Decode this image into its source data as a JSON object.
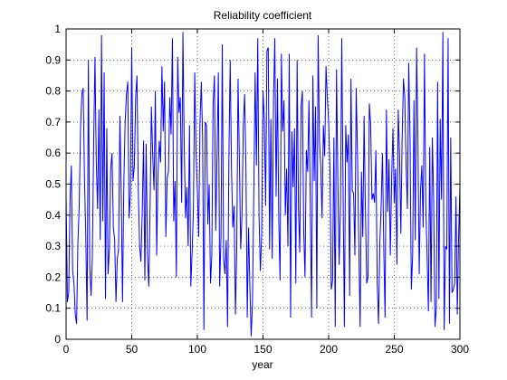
{
  "chart_data": {
    "type": "line",
    "title": "Reliability coefficient",
    "xlabel": "year",
    "ylabel": "",
    "xlim": [
      0,
      300
    ],
    "ylim": [
      0,
      1
    ],
    "xticks": [
      "0",
      "50",
      "100",
      "150",
      "200",
      "250",
      "300"
    ],
    "yticks": [
      "0",
      "0.1",
      "0.2",
      "0.3",
      "0.4",
      "0.5",
      "0.6",
      "0.7",
      "0.8",
      "0.9",
      "1"
    ],
    "grid": true,
    "line_color": "#0000ff",
    "series": [
      {
        "name": "",
        "x_start": 0,
        "x_step": 1,
        "values": [
          0.47,
          0.12,
          0.15,
          0.45,
          0.56,
          0.22,
          0.18,
          0.08,
          0.05,
          0.31,
          0.43,
          0.68,
          0.79,
          0.81,
          0.52,
          0.33,
          0.06,
          0.9,
          0.24,
          0.14,
          0.26,
          0.63,
          0.91,
          0.57,
          0.42,
          0.74,
          0.32,
          0.98,
          0.38,
          0.86,
          0.13,
          0.68,
          0.21,
          0.29,
          0.55,
          0.6,
          0.36,
          0.32,
          0.12,
          0.26,
          0.29,
          0.72,
          0.47,
          0.12,
          0.51,
          0.7,
          0.79,
          0.83,
          0.39,
          0.47,
          0.94,
          0.51,
          0.56,
          0.78,
          0.85,
          0.48,
          0.3,
          0.25,
          0.41,
          0.64,
          0.19,
          0.63,
          0.27,
          0.17,
          0.43,
          0.75,
          0.59,
          0.48,
          0.8,
          0.27,
          0.53,
          0.64,
          0.57,
          0.88,
          0.67,
          0.83,
          0.33,
          0.52,
          0.54,
          0.78,
          0.66,
          0.97,
          0.38,
          0.51,
          0.2,
          0.91,
          0.73,
          0.78,
          0.44,
          0.99,
          0.62,
          0.39,
          0.49,
          0.3,
          0.69,
          0.17,
          0.28,
          0.42,
          0.86,
          0.6,
          0.48,
          0.33,
          0.7,
          0.83,
          0.65,
          0.03,
          0.7,
          0.69,
          0.37,
          0.5,
          0.18,
          0.27,
          0.76,
          0.85,
          0.35,
          0.6,
          0.86,
          0.17,
          0.33,
          0.95,
          0.26,
          0.21,
          0.32,
          0.04,
          0.58,
          0.9,
          0.55,
          0.36,
          0.43,
          0.08,
          0.29,
          0.84,
          0.58,
          0.29,
          0.4,
          0.69,
          0.79,
          0.55,
          0.07,
          0.36,
          0.17,
          0.01,
          0.12,
          0.48,
          0.86,
          0.56,
          0.97,
          0.39,
          0.22,
          0.34,
          0.8,
          0.71,
          0.43,
          0.93,
          0.94,
          0.29,
          0.71,
          0.26,
          0.77,
          0.97,
          0.46,
          0.84,
          0.39,
          0.19,
          0.92,
          0.67,
          0.77,
          0.4,
          0.55,
          0.3,
          0.92,
          0.07,
          0.67,
          0.49,
          0.68,
          0.18,
          0.9,
          0.42,
          0.28,
          0.75,
          0.8,
          0.35,
          0.2,
          0.61,
          0.54,
          0.77,
          0.44,
          0.07,
          0.85,
          0.51,
          0.75,
          0.1,
          0.98,
          0.64,
          0.56,
          0.39,
          0.69,
          0.59,
          0.88,
          0.78,
          0.7,
          0.55,
          0.16,
          0.19,
          0.65,
          0.04,
          0.87,
          0.52,
          0.24,
          0.43,
          0.97,
          0.48,
          0.04,
          0.69,
          0.57,
          0.66,
          0.14,
          0.84,
          0.48,
          0.47,
          0.27,
          0.81,
          0.59,
          0.3,
          0.04,
          0.54,
          0.33,
          0.72,
          0.42,
          0.18,
          0.2,
          0.76,
          0.69,
          0.45,
          0.47,
          0.44,
          0.61,
          0.18,
          0.05,
          0.31,
          0.43,
          0.6,
          0.29,
          0.07,
          0.74,
          0.41,
          0.58,
          0.27,
          0.52,
          0.68,
          0.44,
          0.55,
          0.24,
          0.74,
          0.6,
          0.34,
          0.65,
          0.84,
          0.78,
          0.56,
          0.42,
          0.89,
          0.65,
          0.16,
          0.27,
          0.77,
          0.32,
          0.94,
          0.65,
          0.21,
          0.48,
          0.56,
          0.36,
          0.92,
          0.43,
          0.27,
          0.09,
          0.62,
          0.12,
          0.65,
          0.45,
          0.04,
          0.1,
          0.83,
          0.13,
          0.71,
          0.45,
          0.99,
          0.03,
          0.3,
          0.29,
          0.97,
          0.05,
          0.65,
          0.15,
          0.16,
          0.18,
          0.46,
          0.08,
          0.33,
          0.49
        ]
      }
    ]
  }
}
